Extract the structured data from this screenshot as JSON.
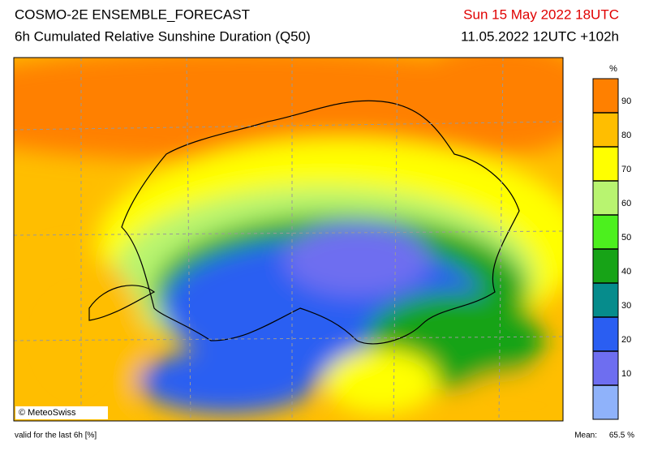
{
  "header": {
    "title": "COSMO-2E ENSEMBLE_FORECAST",
    "subtitle": "6h Cumulated Relative Sunshine Duration (Q50)",
    "valid_time": "Sun 15 May 2022 18UTC",
    "run": "11.05.2022 12UTC +102h"
  },
  "map": {
    "credit": "© MeteoSwiss"
  },
  "colorbar": {
    "unit": "%",
    "range": [
      0,
      100
    ],
    "ticks": [
      10,
      20,
      30,
      40,
      50,
      60,
      70,
      80,
      90
    ],
    "colors": [
      "#8fb2fa",
      "#6e6ef0",
      "#2a5ef2",
      "#068c8c",
      "#17a317",
      "#4cf01e",
      "#b8f470",
      "#ffff00",
      "#ffbe00",
      "#ff8000"
    ]
  },
  "footer": {
    "note": "valid for the last 6h [%]",
    "mean_label": "Mean:",
    "mean_value": "65.5 %"
  }
}
